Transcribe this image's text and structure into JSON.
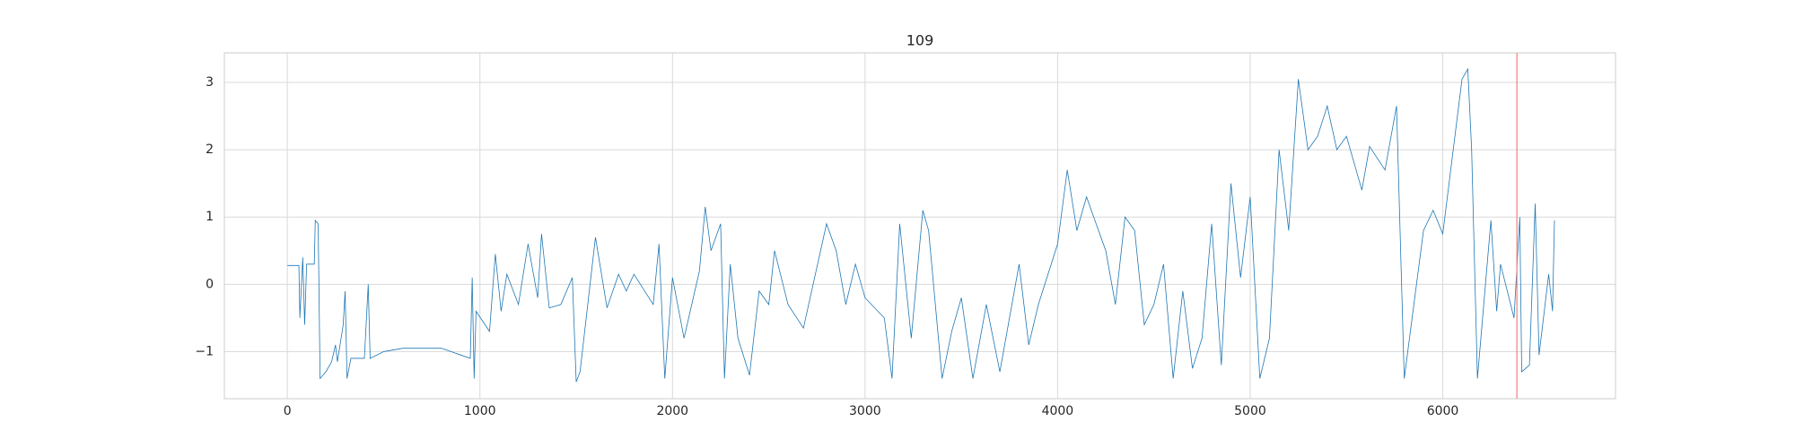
{
  "chart_data": {
    "type": "line",
    "title": "109",
    "x": [
      0,
      60,
      65,
      80,
      90,
      100,
      140,
      145,
      160,
      170,
      200,
      230,
      250,
      260,
      290,
      300,
      310,
      330,
      400,
      420,
      430,
      500,
      600,
      700,
      800,
      900,
      950,
      960,
      970,
      980,
      1050,
      1080,
      1110,
      1140,
      1200,
      1250,
      1300,
      1320,
      1360,
      1420,
      1480,
      1500,
      1520,
      1600,
      1660,
      1720,
      1760,
      1800,
      1900,
      1930,
      1960,
      2000,
      2060,
      2100,
      2140,
      2170,
      2200,
      2250,
      2270,
      2300,
      2340,
      2400,
      2450,
      2500,
      2530,
      2600,
      2680,
      2800,
      2850,
      2900,
      2950,
      3000,
      3100,
      3140,
      3180,
      3240,
      3300,
      3330,
      3400,
      3450,
      3500,
      3560,
      3630,
      3700,
      3800,
      3850,
      3900,
      4000,
      4050,
      4100,
      4150,
      4200,
      4250,
      4300,
      4350,
      4400,
      4450,
      4500,
      4550,
      4600,
      4650,
      4700,
      4750,
      4800,
      4850,
      4900,
      4950,
      5000,
      5050,
      5100,
      5150,
      5200,
      5250,
      5300,
      5350,
      5400,
      5450,
      5500,
      5580,
      5620,
      5700,
      5760,
      5800,
      5850,
      5900,
      5950,
      6000,
      6100,
      6130,
      6150,
      6180,
      6250,
      6280,
      6300,
      6370,
      6400,
      6410,
      6450,
      6480,
      6500,
      6550,
      6570,
      6580
    ],
    "series": [
      {
        "color": "#1f77b4",
        "values": [
          0.28,
          0.28,
          -0.5,
          0.4,
          -0.6,
          0.3,
          0.3,
          0.95,
          0.9,
          -1.4,
          -1.3,
          -1.15,
          -0.9,
          -1.15,
          -0.6,
          -0.1,
          -1.4,
          -1.1,
          -1.1,
          0,
          -1.1,
          -1.0,
          -0.95,
          -0.95,
          -0.95,
          -1.05,
          -1.1,
          0.1,
          -1.4,
          -0.4,
          -0.7,
          0.45,
          -0.4,
          0.15,
          -0.3,
          0.6,
          -0.2,
          0.75,
          -0.35,
          -0.3,
          0.1,
          -1.45,
          -1.3,
          0.7,
          -0.35,
          0.15,
          -0.1,
          0.15,
          -0.3,
          0.6,
          -1.4,
          0.1,
          -0.8,
          -0.3,
          0.2,
          1.15,
          0.5,
          0.9,
          -1.4,
          0.3,
          -0.8,
          -1.35,
          -0.1,
          -0.3,
          0.5,
          -0.3,
          -0.65,
          0.9,
          0.5,
          -0.3,
          0.3,
          -0.2,
          -0.5,
          -1.4,
          0.9,
          -0.8,
          1.1,
          0.8,
          -1.4,
          -0.7,
          -0.2,
          -1.4,
          -0.3,
          -1.3,
          0.3,
          -0.9,
          -0.3,
          0.6,
          1.7,
          0.8,
          1.3,
          0.9,
          0.5,
          -0.3,
          1.0,
          0.8,
          -0.6,
          -0.3,
          0.3,
          -1.4,
          -0.1,
          -1.25,
          -0.8,
          0.9,
          -1.2,
          1.5,
          0.1,
          1.3,
          -1.4,
          -0.8,
          2.0,
          0.8,
          3.05,
          2.0,
          2.2,
          2.65,
          2.0,
          2.2,
          1.4,
          2.05,
          1.7,
          2.65,
          -1.4,
          -0.3,
          0.8,
          1.1,
          0.75,
          3.05,
          3.2,
          2.0,
          -1.4,
          0.95,
          -0.4,
          0.3,
          -0.5,
          1.0,
          -1.3,
          -1.2,
          1.2,
          -1.05,
          0.15,
          -0.4,
          0.95
        ]
      }
    ],
    "vline": {
      "x": 6385,
      "color": "#f08080"
    },
    "xlim": [
      -327,
      6897
    ],
    "ylim": [
      -1.7,
      3.44
    ],
    "xticks": [
      0,
      1000,
      2000,
      3000,
      4000,
      5000,
      6000
    ],
    "yticks": [
      {
        "value": -1,
        "label": "−1"
      },
      0,
      1,
      2,
      3
    ],
    "grid": true
  }
}
